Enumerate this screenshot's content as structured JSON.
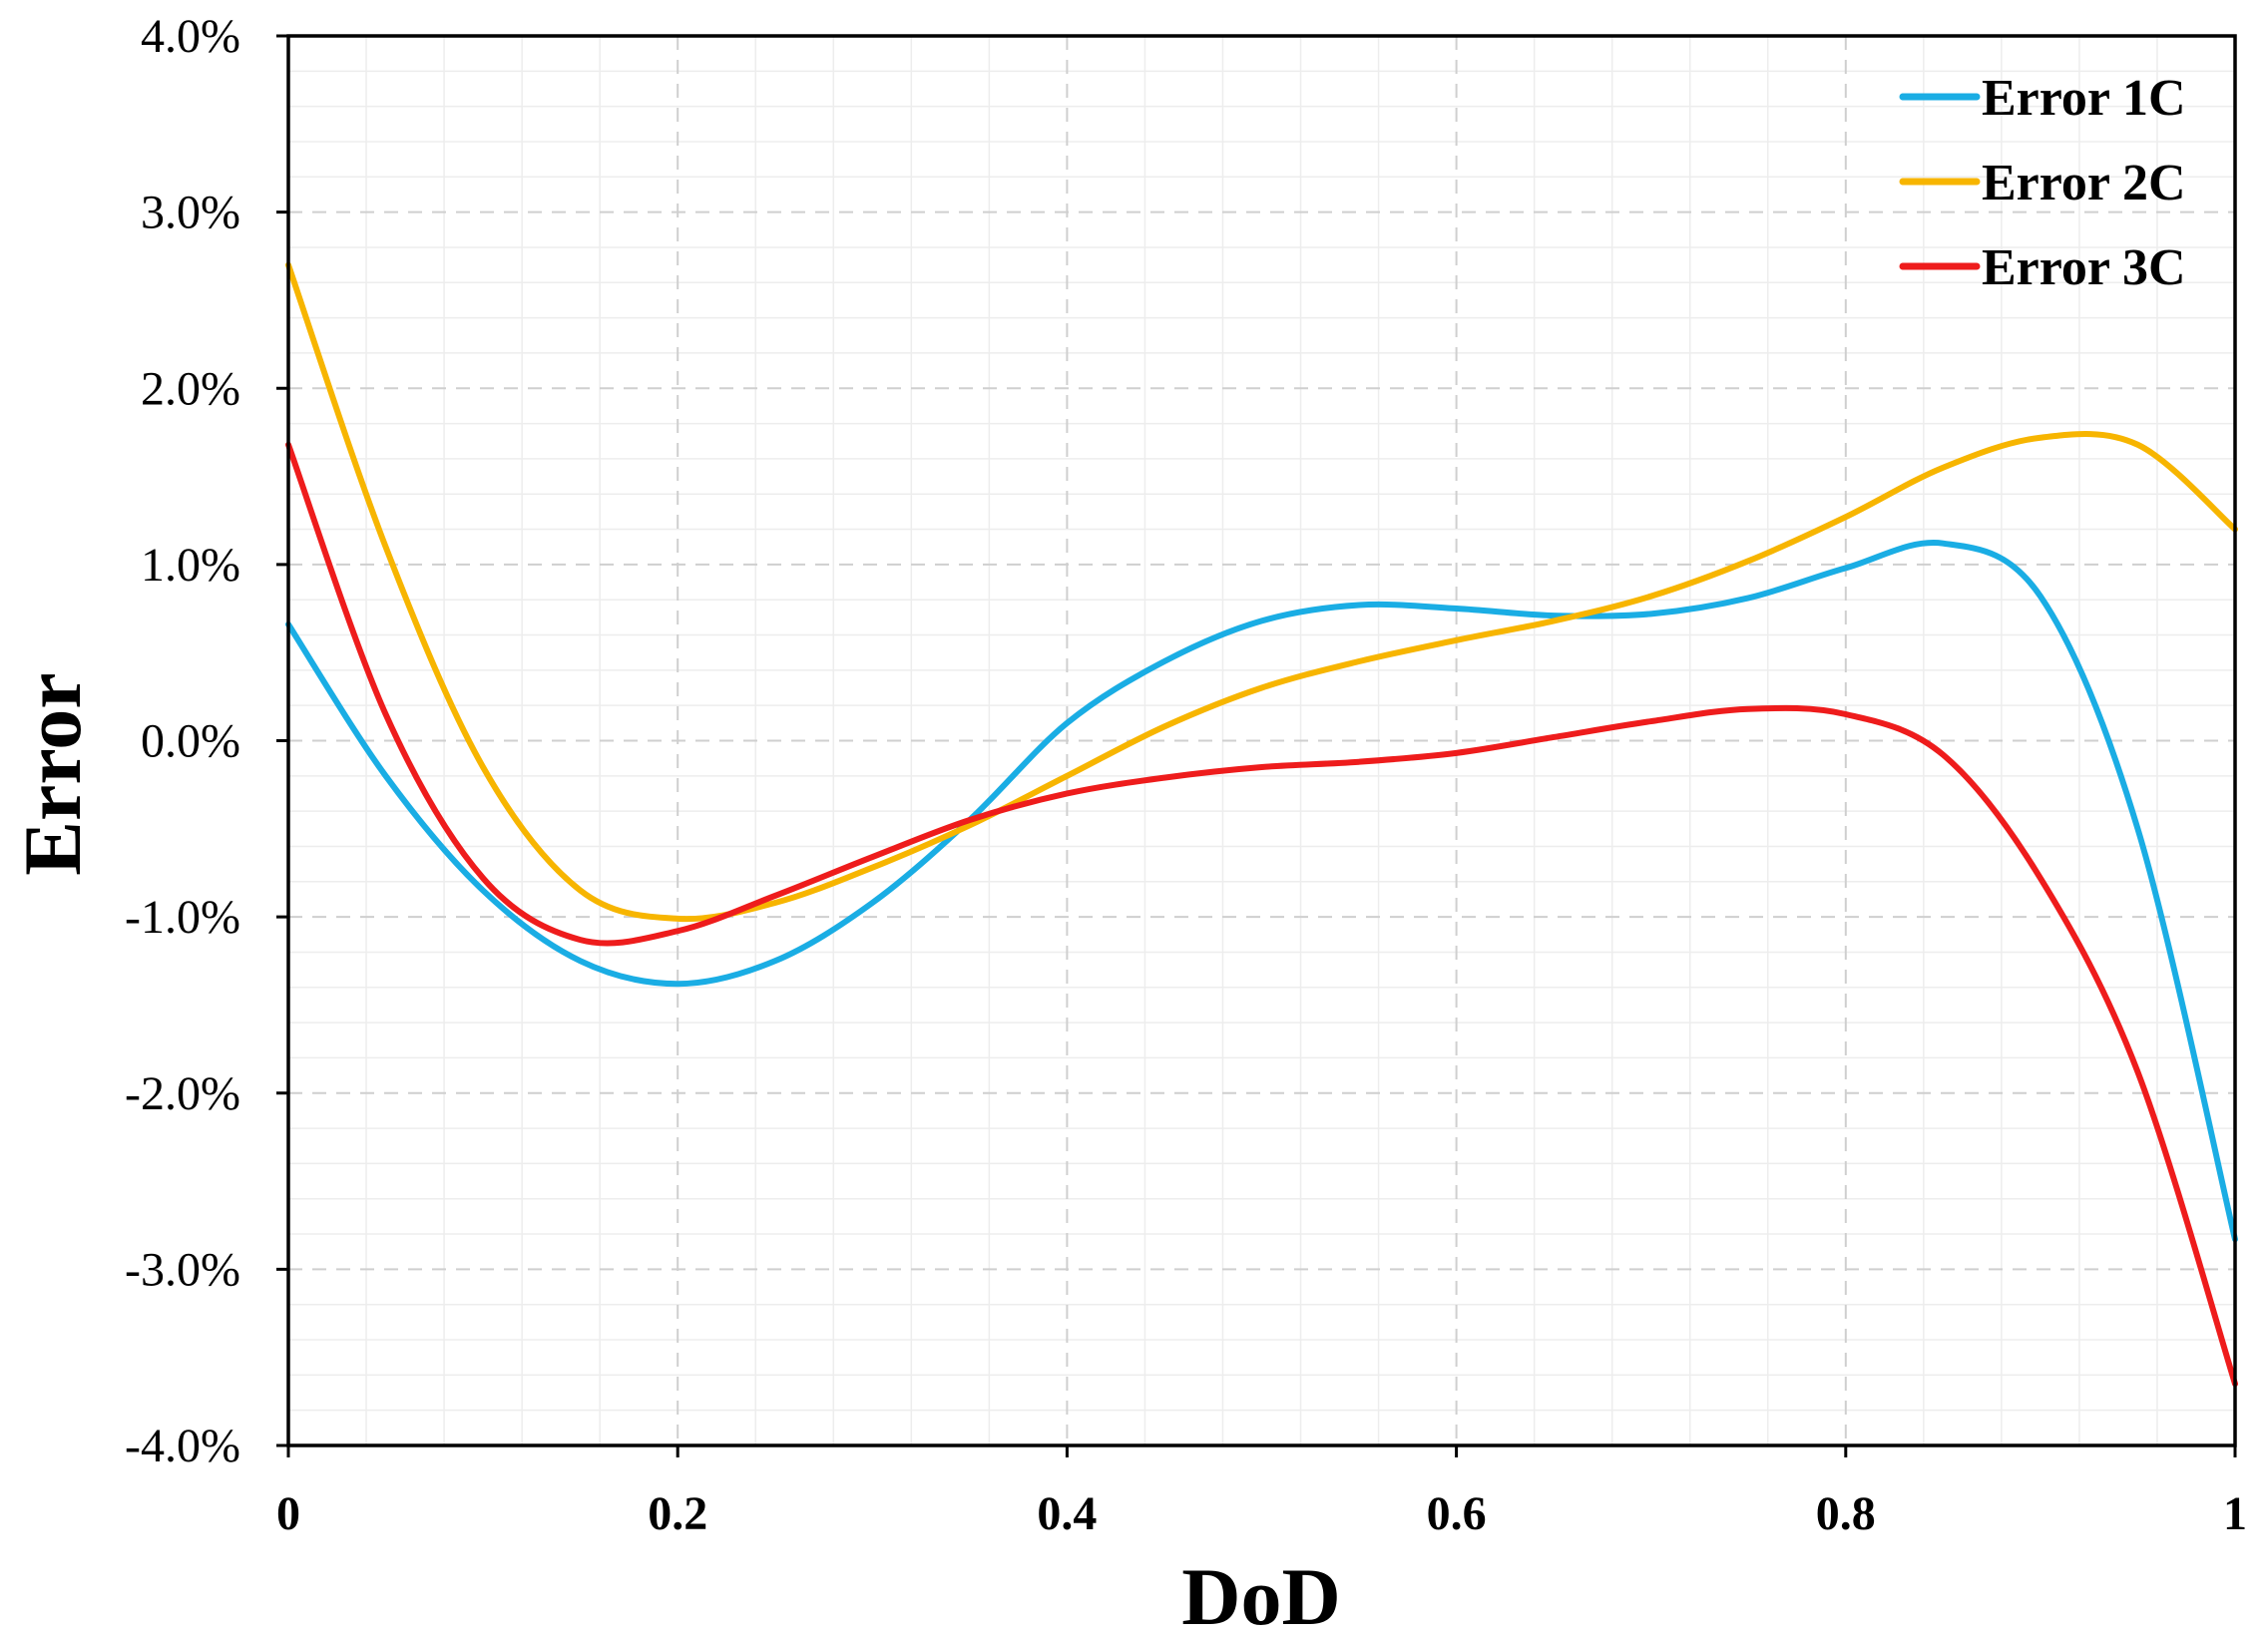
{
  "chart_data": {
    "type": "line",
    "title": "",
    "xlabel": "DoD",
    "ylabel": "Error",
    "xlim": [
      0,
      1
    ],
    "ylim": [
      -0.04,
      0.04
    ],
    "x_ticks": [
      0,
      0.2,
      0.4,
      0.6,
      0.8,
      1
    ],
    "x_tick_labels": [
      "0",
      "0.2",
      "0.4",
      "0.6",
      "0.8",
      "1"
    ],
    "y_ticks": [
      0.04,
      0.03,
      0.02,
      0.01,
      0,
      -0.01,
      -0.02,
      -0.03,
      -0.04
    ],
    "y_tick_labels": [
      "4.0%",
      "3.0%",
      "2.0%",
      "1.0%",
      "0.0%",
      "-1.0%",
      "-2.0%",
      "-3.0%",
      "-4.0%"
    ],
    "grid": true,
    "legend_position": "top-right",
    "series": [
      {
        "name": "Error 1C",
        "color": "#1AADE4",
        "x": [
          0,
          0.05,
          0.1,
          0.15,
          0.2,
          0.25,
          0.3,
          0.35,
          0.4,
          0.45,
          0.5,
          0.55,
          0.6,
          0.65,
          0.7,
          0.75,
          0.8,
          0.85,
          0.9,
          0.95,
          1.0
        ],
        "y": [
          0.0066,
          -0.002,
          -0.0085,
          -0.0125,
          -0.0138,
          -0.0125,
          -0.0092,
          -0.0045,
          0.001,
          0.0045,
          0.0068,
          0.0077,
          0.0075,
          0.0071,
          0.0072,
          0.0081,
          0.0098,
          0.0112,
          0.0082,
          -0.005,
          -0.0283
        ]
      },
      {
        "name": "Error 2C",
        "color": "#F7B500",
        "x": [
          0,
          0.05,
          0.1,
          0.15,
          0.2,
          0.25,
          0.3,
          0.35,
          0.4,
          0.45,
          0.5,
          0.55,
          0.6,
          0.65,
          0.7,
          0.75,
          0.8,
          0.85,
          0.9,
          0.95,
          1.0
        ],
        "y": [
          0.027,
          0.011,
          -0.0015,
          -0.0085,
          -0.0101,
          -0.0092,
          -0.0072,
          -0.0048,
          -0.002,
          0.0008,
          0.003,
          0.0045,
          0.0057,
          0.0068,
          0.0082,
          0.0102,
          0.0127,
          0.0155,
          0.0172,
          0.0168,
          0.012
        ]
      },
      {
        "name": "Error 3C",
        "color": "#EE1C1C",
        "x": [
          0,
          0.05,
          0.1,
          0.15,
          0.2,
          0.25,
          0.3,
          0.35,
          0.4,
          0.45,
          0.5,
          0.55,
          0.6,
          0.65,
          0.7,
          0.75,
          0.8,
          0.85,
          0.9,
          0.95,
          1.0
        ],
        "y": [
          0.0168,
          0.0015,
          -0.0078,
          -0.0113,
          -0.0108,
          -0.0088,
          -0.0066,
          -0.0045,
          -0.003,
          -0.0021,
          -0.0015,
          -0.0012,
          -0.0007,
          0.0002,
          0.0011,
          0.0018,
          0.0015,
          -0.0008,
          -0.0078,
          -0.0188,
          -0.0365
        ]
      }
    ]
  }
}
